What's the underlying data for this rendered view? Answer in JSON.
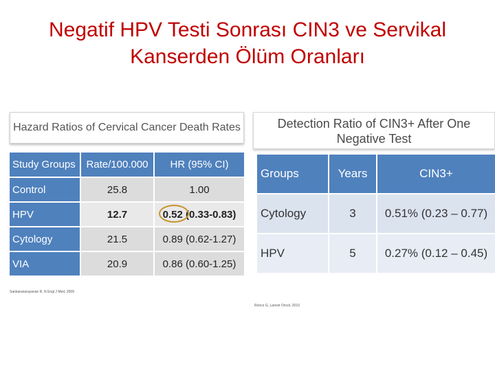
{
  "title": {
    "line1": "Negatif HPV Testi Sonrası CIN3 ve Servikal",
    "line2": "Kanserden Ölüm Oranları"
  },
  "left_figure": {
    "caption": "Hazard Ratios of Cervical Cancer Death Rates",
    "headers": [
      "Study Groups",
      "Rate/100.000",
      "HR (95% CI)"
    ],
    "rows": [
      {
        "group": "Control",
        "rate": "25.8",
        "hr": "1.00"
      },
      {
        "group": "HPV",
        "rate": "12.7",
        "hr_point": "0.52",
        "hr_ci": "(0.33-0.83)"
      },
      {
        "group": "Cytology",
        "rate": "21.5",
        "hr": "0.89 (0.62-1.27)"
      },
      {
        "group": "VIA",
        "rate": "20.9",
        "hr": "0.86 (0.60-1.25)"
      }
    ],
    "citation": "Sankaranarayanan R, N Engl J Med, 2009"
  },
  "right_figure": {
    "caption_line1": "Detection Ratio of CIN3+ After One",
    "caption_line2": "Negative Test",
    "headers": [
      "Groups",
      "Years",
      "CIN3+"
    ],
    "rows": [
      {
        "group": "Cytology",
        "years": "3",
        "cin3": "0.51% (0.23 – 0.77)"
      },
      {
        "group": "HPV",
        "years": "5",
        "cin3": "0.27% (0.12 – 0.45)"
      }
    ],
    "citation": "Ronco G, Lancet Oncol, 2010"
  }
}
